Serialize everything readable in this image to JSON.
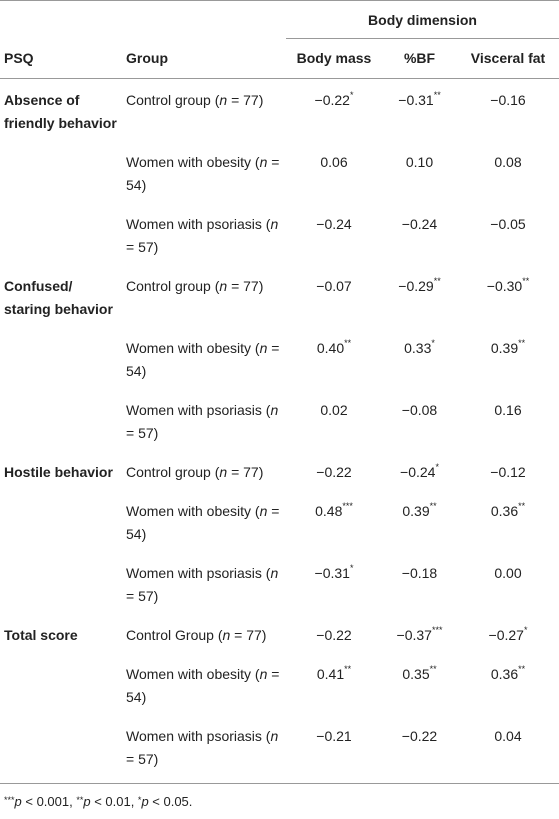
{
  "header": {
    "span_title": "Body dimension",
    "columns": [
      "PSQ",
      "Group",
      "Body mass",
      "%BF",
      "Visceral fat"
    ]
  },
  "table": {
    "rows": [
      {
        "psq": "Absence of friendly behavior",
        "group": [
          {
            "text": "Control group ("
          },
          {
            "text": "n",
            "style": "italic"
          },
          {
            "text": " = 77)"
          }
        ],
        "values": [
          {
            "text": "−0.22",
            "sup": "*"
          },
          {
            "text": "−0.31",
            "sup": "**"
          },
          {
            "text": "−0.16"
          }
        ]
      },
      {
        "psq": null,
        "group": [
          {
            "text": "Women with obesity ("
          },
          {
            "text": "n",
            "style": "italic"
          },
          {
            "text": " = 54)"
          }
        ],
        "values": [
          {
            "text": "0.06"
          },
          {
            "text": "0.10"
          },
          {
            "text": "0.08"
          }
        ]
      },
      {
        "psq": null,
        "group": [
          {
            "text": "Women with psoriasis ("
          },
          {
            "text": "n",
            "style": "italic"
          },
          {
            "text": " = 57)"
          }
        ],
        "values": [
          {
            "text": "−0.24"
          },
          {
            "text": "−0.24"
          },
          {
            "text": "−0.05"
          }
        ]
      },
      {
        "psq": "Confused/ staring behavior",
        "group": [
          {
            "text": "Control group ("
          },
          {
            "text": "n",
            "style": "italic"
          },
          {
            "text": " = 77)"
          }
        ],
        "values": [
          {
            "text": "−0.07"
          },
          {
            "text": "−0.29",
            "sup": "**"
          },
          {
            "text": "−0.30",
            "sup": "**"
          }
        ]
      },
      {
        "psq": null,
        "group": [
          {
            "text": "Women with obesity ("
          },
          {
            "text": "n",
            "style": "italic"
          },
          {
            "text": " = 54)"
          }
        ],
        "values": [
          {
            "text": "0.40",
            "sup": "**"
          },
          {
            "text": "0.33",
            "sup": "*"
          },
          {
            "text": "0.39",
            "sup": "**"
          }
        ]
      },
      {
        "psq": null,
        "group": [
          {
            "text": "Women with psoriasis ("
          },
          {
            "text": "n",
            "style": "italic"
          },
          {
            "text": " = 57)"
          }
        ],
        "values": [
          {
            "text": "0.02"
          },
          {
            "text": "−0.08"
          },
          {
            "text": "0.16"
          }
        ]
      },
      {
        "psq": "Hostile behavior",
        "group": [
          {
            "text": "Control group ("
          },
          {
            "text": "n",
            "style": "italic"
          },
          {
            "text": " = 77)"
          }
        ],
        "values": [
          {
            "text": "−0.22"
          },
          {
            "text": "−0.24",
            "sup": "*"
          },
          {
            "text": "−0.12"
          }
        ]
      },
      {
        "psq": null,
        "group": [
          {
            "text": "Women with obesity ("
          },
          {
            "text": "n",
            "style": "italic"
          },
          {
            "text": " = 54)"
          }
        ],
        "values": [
          {
            "text": "0.48",
            "sup": "***"
          },
          {
            "text": "0.39",
            "sup": "**"
          },
          {
            "text": "0.36",
            "sup": "**"
          }
        ]
      },
      {
        "psq": null,
        "group": [
          {
            "text": "Women with psoriasis ("
          },
          {
            "text": "n",
            "style": "italic"
          },
          {
            "text": " = 57)"
          }
        ],
        "values": [
          {
            "text": "−0.31",
            "sup": "*"
          },
          {
            "text": "−0.18"
          },
          {
            "text": "0.00"
          }
        ]
      },
      {
        "psq": "Total score",
        "group": [
          {
            "text": "Control Group ("
          },
          {
            "text": "n",
            "style": "italic"
          },
          {
            "text": " = 77)"
          }
        ],
        "values": [
          {
            "text": "−0.22"
          },
          {
            "text": "−0.37",
            "sup": "***"
          },
          {
            "text": "−0.27",
            "sup": "*"
          }
        ]
      },
      {
        "psq": null,
        "group": [
          {
            "text": "Women with obesity ("
          },
          {
            "text": "n",
            "style": "italic"
          },
          {
            "text": " = 54)"
          }
        ],
        "values": [
          {
            "text": "0.41",
            "sup": "**"
          },
          {
            "text": "0.35",
            "sup": "**"
          },
          {
            "text": "0.36",
            "sup": "**"
          }
        ]
      },
      {
        "psq": null,
        "group": [
          {
            "text": "Women with psoriasis ("
          },
          {
            "text": "n",
            "style": "italic"
          },
          {
            "text": " = 57)"
          }
        ],
        "values": [
          {
            "text": "−0.21"
          },
          {
            "text": "−0.22"
          },
          {
            "text": "0.04"
          }
        ]
      }
    ]
  },
  "footnote": [
    {
      "text": "***",
      "style": "sup"
    },
    {
      "text": "p",
      "style": "italic"
    },
    {
      "text": " < 0.001, "
    },
    {
      "text": "**",
      "style": "sup"
    },
    {
      "text": "p",
      "style": "italic"
    },
    {
      "text": " < 0.01, "
    },
    {
      "text": "*",
      "style": "sup"
    },
    {
      "text": "p",
      "style": "italic"
    },
    {
      "text": " < 0.05."
    }
  ]
}
